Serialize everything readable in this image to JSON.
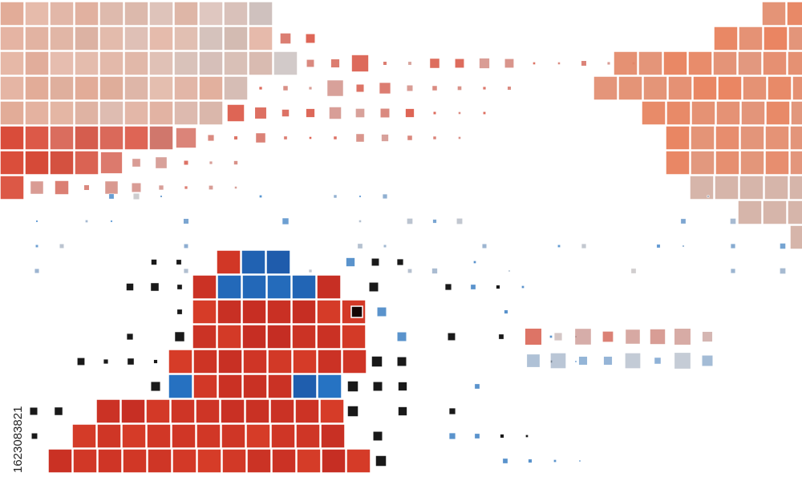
{
  "image_id": "1623083821"
}
